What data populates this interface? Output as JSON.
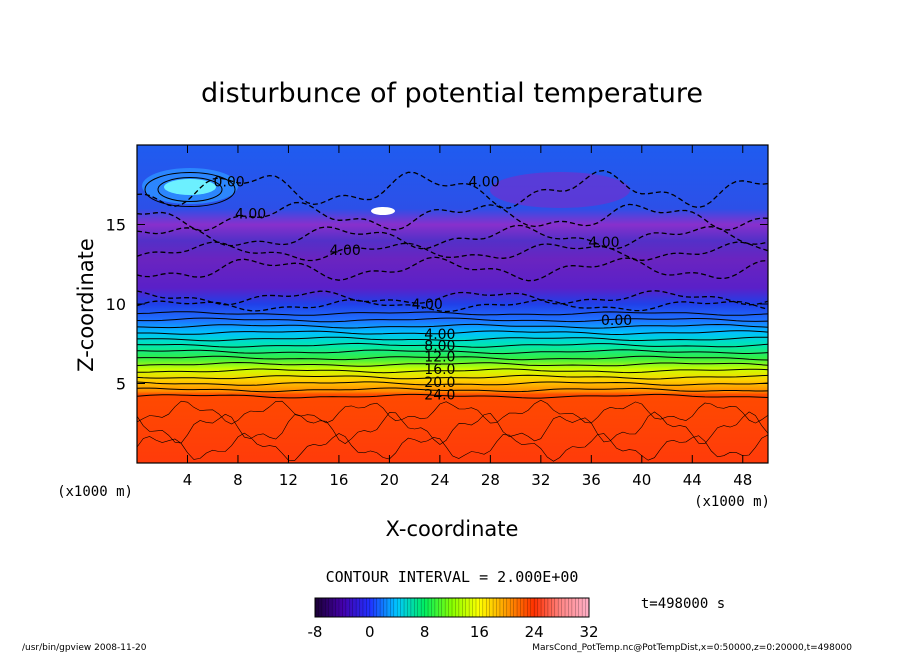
{
  "chart_data": {
    "type": "heatmap",
    "title": "disturbunce of potential temperature",
    "xlabel": "X-coordinate",
    "ylabel": "Z-coordinate",
    "x_unit_left": "(x1000 m)",
    "x_unit_right": "(x1000 m)",
    "xlim": [
      0,
      50
    ],
    "ylim": [
      0,
      20
    ],
    "x_ticks": [
      4,
      8,
      12,
      16,
      20,
      24,
      28,
      32,
      36,
      40,
      44,
      48
    ],
    "y_ticks": [
      5,
      10,
      15
    ],
    "contour_interval_text": "CONTOUR INTERVAL = 2.000E+00",
    "time_text": "t=498000 s",
    "colorbar": {
      "range": [
        -8,
        32
      ],
      "tick_values": [
        -8,
        0,
        8,
        16,
        24,
        32
      ],
      "stops": [
        "#1a0033",
        "#4400aa",
        "#2030ff",
        "#00c8ff",
        "#00ee60",
        "#88ff00",
        "#ffff00",
        "#ff9900",
        "#ff3000",
        "#ff8888",
        "#ffb0c8"
      ]
    },
    "contour_labels": [
      {
        "text": "4.00",
        "x": 24,
        "z": 8.1
      },
      {
        "text": "8.00",
        "x": 24,
        "z": 7.4
      },
      {
        "text": "12.0",
        "x": 24,
        "z": 6.7
      },
      {
        "text": "16.0",
        "x": 24,
        "z": 5.9
      },
      {
        "text": "20.0",
        "x": 24,
        "z": 5.1
      },
      {
        "text": "24.0",
        "x": 24,
        "z": 4.3
      },
      {
        "text": "0.00",
        "x": 38,
        "z": 9.0
      },
      {
        "text": "4.00",
        "x": 23,
        "z": 10.0
      },
      {
        "text": "4.00",
        "x": 16.5,
        "z": 13.4
      },
      {
        "text": "4.00",
        "x": 37,
        "z": 13.9
      },
      {
        "text": "4.00",
        "x": 9,
        "z": 15.7
      },
      {
        "text": "0.00",
        "x": 7.3,
        "z": 17.7
      },
      {
        "text": "4.00",
        "x": 27.5,
        "z": 17.7
      }
    ]
  },
  "footer": {
    "left": "/usr/bin/gpview   2008-11-20",
    "right": "MarsCond_PotTemp.nc@PotTempDist,x=0:50000,z=0:20000,t=498000"
  }
}
